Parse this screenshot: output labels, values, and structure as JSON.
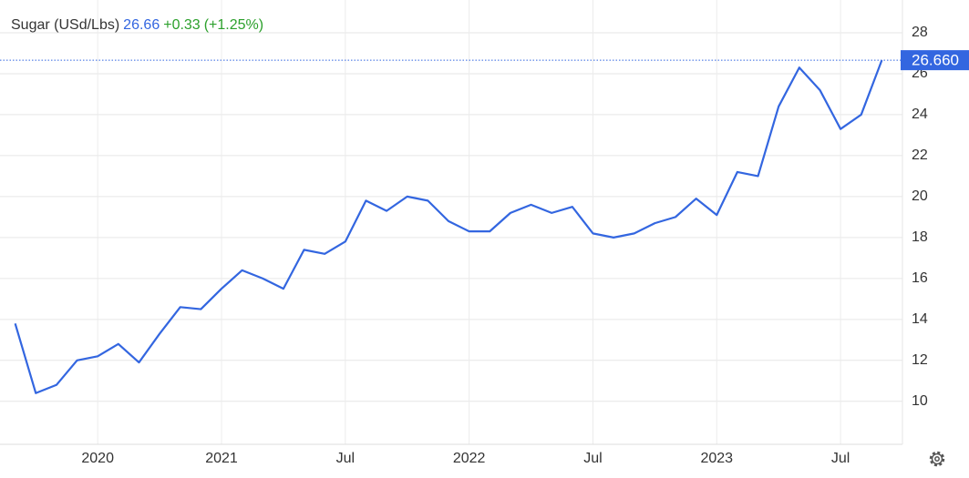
{
  "chart_data": {
    "type": "line",
    "title": "Sugar (USd/Lbs)",
    "last": "26.66",
    "change": "+0.33",
    "change_pct": "(+1.25%)",
    "last_label": "26.660",
    "x": [
      "2020-03",
      "2020-04",
      "2020-05",
      "2020-06",
      "2020-07",
      "2020-08",
      "2020-09",
      "2020-10",
      "2020-11",
      "2020-12",
      "2021-01",
      "2021-02",
      "2021-03",
      "2021-04",
      "2021-05",
      "2021-06",
      "2021-07",
      "2021-08",
      "2021-09",
      "2021-10",
      "2021-11",
      "2021-12",
      "2022-01",
      "2022-02",
      "2022-03",
      "2022-04",
      "2022-05",
      "2022-06",
      "2022-07",
      "2022-08",
      "2022-09",
      "2022-10",
      "2022-11",
      "2022-12",
      "2023-01",
      "2023-02",
      "2023-03",
      "2023-04",
      "2023-05",
      "2023-06",
      "2023-07",
      "2023-08",
      "2023-09"
    ],
    "series": [
      {
        "name": "Sugar",
        "color": "#3366e0",
        "values": [
          13.8,
          10.4,
          10.8,
          12.0,
          12.2,
          12.8,
          11.9,
          13.3,
          14.6,
          14.5,
          15.5,
          16.4,
          16.0,
          15.5,
          17.4,
          17.2,
          17.8,
          19.8,
          19.3,
          20.0,
          19.8,
          18.8,
          18.3,
          18.3,
          19.2,
          19.6,
          19.2,
          19.5,
          18.2,
          18.0,
          18.2,
          18.7,
          19.0,
          19.9,
          19.1,
          21.2,
          21.0,
          24.4,
          26.3,
          25.2,
          23.3,
          24.0,
          26.66
        ]
      }
    ],
    "xlim": [
      "2020-02",
      "2023-10"
    ],
    "xticks": [
      {
        "value": "2020-07",
        "label": "2020"
      },
      {
        "value": "2021-01",
        "label": "2021"
      },
      {
        "value": "2021-07",
        "label": "Jul"
      },
      {
        "value": "2022-01",
        "label": "2022"
      },
      {
        "value": "2022-07",
        "label": "Jul"
      },
      {
        "value": "2023-01",
        "label": "2023"
      },
      {
        "value": "2023-07",
        "label": "Jul"
      }
    ],
    "ylim": [
      7.9,
      29.6
    ],
    "yticks": [
      10,
      12,
      14,
      16,
      18,
      20,
      22,
      24,
      26,
      28
    ],
    "grid": true
  }
}
